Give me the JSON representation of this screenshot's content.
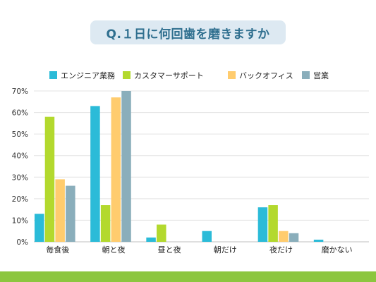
{
  "title": "Q.１日に何回歯を磨きますか",
  "chart_data": {
    "type": "bar",
    "categories": [
      "毎食後",
      "朝と夜",
      "昼と夜",
      "朝だけ",
      "夜だけ",
      "磨かない"
    ],
    "series": [
      {
        "name": "エンジニア業務",
        "color": "#2bbbd8",
        "values": [
          13,
          63,
          2,
          5,
          16,
          1
        ]
      },
      {
        "name": "カスタマーサポート",
        "color": "#b3d92e",
        "values": [
          58,
          17,
          8,
          0,
          17,
          0
        ]
      },
      {
        "name": "バックオフィス",
        "color": "#ffcc6e",
        "values": [
          29,
          67,
          0,
          0,
          5,
          0
        ]
      },
      {
        "name": "営業",
        "color": "#8aaebb",
        "values": [
          26,
          70,
          0,
          0,
          4,
          0
        ]
      }
    ],
    "y_ticks": [
      "0%",
      "10%",
      "20%",
      "30%",
      "40%",
      "50%",
      "60%",
      "70%"
    ],
    "ylim": [
      0,
      70
    ],
    "grid": true,
    "legend_position": "top"
  },
  "colors": {
    "title_bg": "#dde9f2",
    "title_text": "#2f6f8f",
    "bottom_bar": "#8cc63f",
    "grid": "#e3e3e3"
  }
}
